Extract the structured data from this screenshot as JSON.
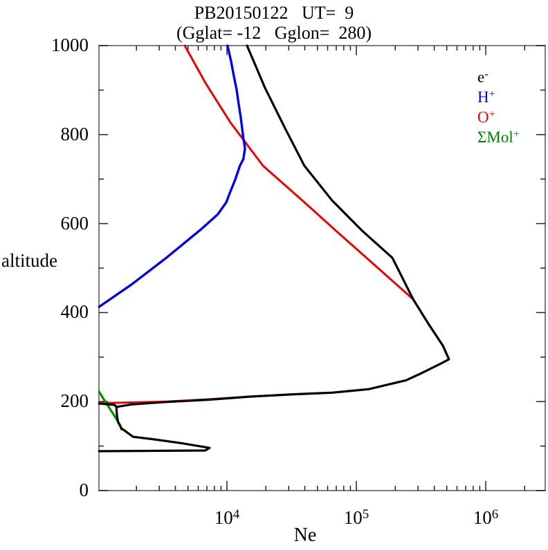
{
  "title": {
    "line1": "PB20150122   UT=  9",
    "line2": "(Gglat= -12   Gglon=  280)"
  },
  "axes": {
    "x_label": "Ne",
    "y_label": "altitude",
    "y_tick_labels": [
      {
        "value": 0,
        "label": "0"
      },
      {
        "value": 200,
        "label": "200"
      },
      {
        "value": 400,
        "label": "400"
      },
      {
        "value": 600,
        "label": "600"
      },
      {
        "value": 800,
        "label": "800"
      },
      {
        "value": 1000,
        "label": "1000"
      }
    ],
    "x_tick_labels": [
      {
        "value": 10000,
        "base": "10",
        "exp": "4"
      },
      {
        "value": 100000,
        "base": "10",
        "exp": "5"
      },
      {
        "value": 1000000,
        "base": "10",
        "exp": "6"
      }
    ]
  },
  "legend": [
    {
      "base": "e",
      "sup": "-",
      "color": "#000000"
    },
    {
      "base": "H",
      "sup": "+",
      "color": "#0000ee"
    },
    {
      "base": "O",
      "sup": "+",
      "color": "#ee0000"
    },
    {
      "base": "ΣMol",
      "sup": "+",
      "color": "#008000"
    }
  ],
  "chart_data": {
    "type": "line",
    "title": "PB20150122 UT= 9 (Gglat= -12 Gglon= 280)",
    "xlabel": "Ne",
    "ylabel": "altitude",
    "x_scale": "log",
    "x_range_log10": [
      3.011,
      6.46
    ],
    "y_range": [
      0,
      1000
    ],
    "x_major_ticks": [
      10000,
      100000,
      1000000
    ],
    "y_major_ticks": [
      0,
      200,
      400,
      600,
      800,
      1000
    ],
    "y_minor_ticks": [
      100,
      300,
      500,
      700,
      900
    ],
    "grid": false,
    "legend_position": "upper right",
    "frame_color": "#7b7b7b",
    "tick_color": "#222222",
    "series": [
      {
        "name": "O+",
        "color": "#ee0000",
        "width": 3,
        "segments": [
          [
            [
              4720,
              1000
            ],
            [
              6830,
              916
            ],
            [
              10600,
              828
            ],
            [
              19000,
              730
            ],
            [
              39700,
              648
            ],
            [
              73400,
              578
            ],
            [
              136000,
              509
            ],
            [
              275000,
              430
            ],
            [
              364000,
              373
            ],
            [
              466000,
              326
            ],
            [
              520000,
              295
            ],
            [
              440000,
              284
            ],
            [
              320000,
              264
            ],
            [
              243000,
              248
            ],
            [
              125000,
              228
            ],
            [
              65000,
              220
            ],
            [
              31000,
              216
            ],
            [
              14800,
              211
            ],
            [
              7100,
              205
            ],
            [
              3390,
              200
            ],
            [
              1830,
              198
            ],
            [
              1030,
              196.4
            ]
          ]
        ]
      },
      {
        "name": "Mol+",
        "color": "#009100",
        "width": 3.2,
        "segments": [
          [
            [
              1030,
              222
            ],
            [
              1120,
              205
            ],
            [
              1220,
              188
            ],
            [
              1330,
              171
            ],
            [
              1440,
              155
            ],
            [
              1500,
              146
            ],
            [
              1530,
              137
            ]
          ]
        ]
      },
      {
        "name": "H+",
        "color": "#0000ee",
        "width": 3.4,
        "segments": [
          [
            [
              10100,
              1000
            ],
            [
              10800,
              963
            ],
            [
              11300,
              932
            ],
            [
              11900,
              900
            ],
            [
              12300,
              870
            ],
            [
              12800,
              838
            ],
            [
              13100,
              815
            ],
            [
              13400,
              792
            ],
            [
              13800,
              769
            ],
            [
              13400,
              745
            ],
            [
              12600,
              730
            ],
            [
              11600,
              699
            ],
            [
              10500,
              668
            ],
            [
              9900,
              648
            ],
            [
              8500,
              621
            ],
            [
              6300,
              587
            ],
            [
              3400,
              523
            ],
            [
              1830,
              463
            ],
            [
              1030,
              413
            ]
          ]
        ]
      },
      {
        "name": "e-",
        "color": "#000000",
        "width": 3.2,
        "segments": [
          [
            [
              14300,
              1000
            ],
            [
              19700,
              905
            ],
            [
              28400,
              812
            ],
            [
              39700,
              730
            ],
            [
              65000,
              652
            ],
            [
              110000,
              585
            ],
            [
              190000,
              523
            ],
            [
              275000,
              430
            ],
            [
              364000,
              373
            ],
            [
              466000,
              326
            ],
            [
              520000,
              295
            ],
            [
              440000,
              284
            ],
            [
              320000,
              264
            ],
            [
              243000,
              248
            ],
            [
              125000,
              228
            ],
            [
              65000,
              220
            ],
            [
              31000,
              216
            ],
            [
              14800,
              211
            ],
            [
              7100,
              204
            ],
            [
              3390,
              199
            ],
            [
              1870,
              194
            ],
            [
              1400,
              188
            ],
            [
              1355,
              192.5
            ],
            [
              1030,
              195.7
            ]
          ],
          [
            [
              1400,
              188
            ],
            [
              1410,
              172
            ],
            [
              1440,
              154
            ],
            [
              1530,
              140
            ],
            [
              1880,
              121
            ],
            [
              2740,
              115
            ],
            [
              4330,
              107
            ],
            [
              7350,
              96
            ],
            [
              6800,
              90
            ],
            [
              1030,
              88.5
            ]
          ]
        ]
      }
    ]
  }
}
